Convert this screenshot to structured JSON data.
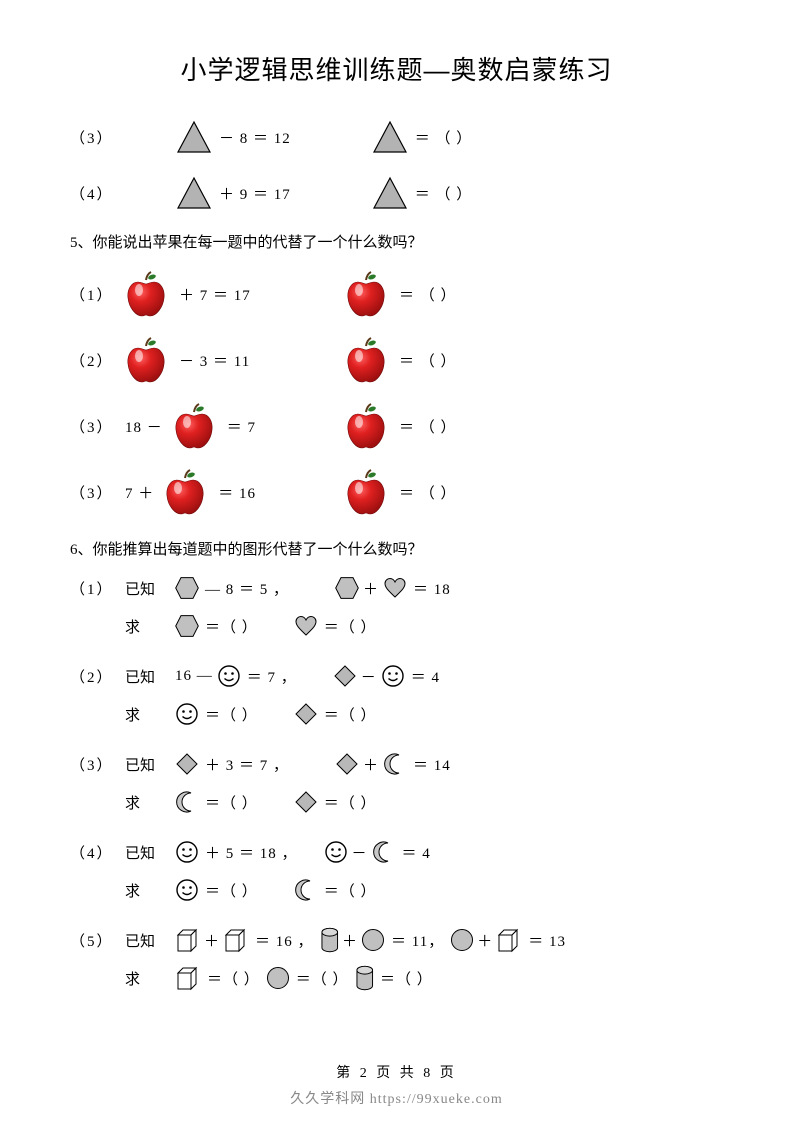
{
  "title": "小学逻辑思维训练题—奥数启蒙练习",
  "colors": {
    "triangle_fill": "#b3b3b3",
    "triangle_stroke": "#000000",
    "apple_body": "#d01818",
    "apple_highlight": "#ffffff",
    "apple_stem": "#5a3a1a",
    "apple_leaf": "#2a7a2a",
    "hexagon_fill": "#c0c0c0",
    "heart_fill": "#c0c0c0",
    "smiley_fill": "#ffffff",
    "smiley_stroke": "#000000",
    "diamond_fill": "#b8b8b8",
    "moon_fill": "#c8c8c8",
    "cube_fill": "#ffffff",
    "cube_stroke": "#000000",
    "cylinder_fill": "#c0c0c0",
    "circle_fill": "#c0c0c0"
  },
  "blank": "（          ）",
  "triangles": [
    {
      "label": "（3）",
      "expr": "－ 8 ＝ 12",
      "ans": "＝ （          ）"
    },
    {
      "label": "（4）",
      "expr": "＋ 9 ＝ 17",
      "ans": "＝  （          ）"
    }
  ],
  "q5": {
    "text": "5、你能说出苹果在每一题中的代替了一个什么数吗？",
    "items": [
      {
        "label": "（1）",
        "pre": "",
        "op": "＋ 7 ＝ 17",
        "ans": " ＝ （            ）"
      },
      {
        "label": "（2）",
        "pre": "",
        "op": "－ 3 ＝ 11",
        "ans": " ＝ （            ）"
      },
      {
        "label": "（3）",
        "pre": "18 －",
        "op": "＝ 7",
        "ans": " ＝ （            ）"
      },
      {
        "label": "（3）",
        "pre": "7 ＋",
        "op": "＝ 16",
        "ans": " ＝ （            ）"
      }
    ]
  },
  "q6": {
    "text": "6、你能推算出每道题中的图形代替了一个什么数吗？",
    "items": [
      {
        "label": "（1）",
        "known": "已知",
        "line1a": "— 8 ＝ 5 ，",
        "line1b": "＋",
        "line1c": "＝ 18",
        "seek": "求",
        "ans1": "＝（         ）",
        "ans2": "＝（        ）"
      },
      {
        "label": "（2）",
        "known": "已知",
        "line1a": "16 —",
        "line1b": "＝ 7 ，",
        "line1c": "－",
        "line1d": "＝ 4",
        "seek": "求",
        "ans1": "＝（         ）",
        "ans2": "＝（        ）"
      },
      {
        "label": "（3）",
        "known": "已知",
        "line1a": "＋ 3  ＝ 7 ，",
        "line1b": "＋",
        "line1c": "＝ 14",
        "seek": "求",
        "ans1": "＝（         ）",
        "ans2": "＝（        ）"
      },
      {
        "label": "（4）",
        "known": "已知",
        "line1a": "＋ 5  ＝ 18 ，",
        "line1b": "－",
        "line1c": "＝ 4",
        "seek": "求",
        "ans1": "＝（         ）",
        "ans2": "＝（        ）"
      },
      {
        "label": "（5）",
        "known": "已知",
        "plus": "＋",
        "eq1": "＝ 16 ，",
        "eq2": "＝ 11，",
        "eq3": "＝ 13",
        "seek": "求",
        "ans": "＝（        ）"
      }
    ]
  },
  "footer": "第 2 页 共 8 页",
  "watermark": "久久学科网 https://99xueke.com"
}
